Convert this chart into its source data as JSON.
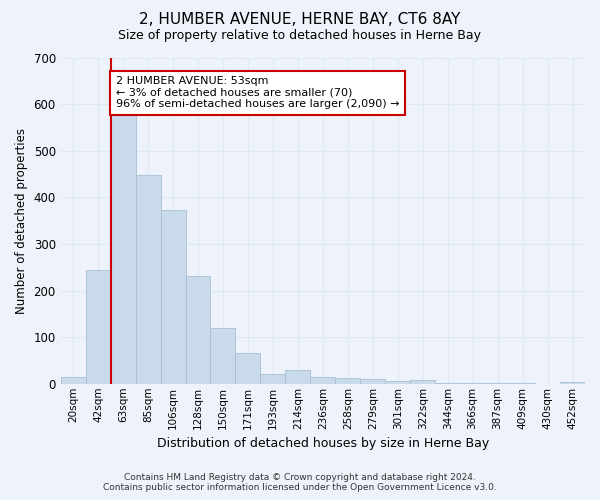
{
  "title": "2, HUMBER AVENUE, HERNE BAY, CT6 8AY",
  "subtitle": "Size of property relative to detached houses in Herne Bay",
  "xlabel": "Distribution of detached houses by size in Herne Bay",
  "ylabel": "Number of detached properties",
  "bar_color": "#c9daea",
  "bar_edge_color": "#a8c0d4",
  "vline_color": "#cc0000",
  "vline_x": 1.5,
  "annotation_text": "2 HUMBER AVENUE: 53sqm\n← 3% of detached houses are smaller (70)\n96% of semi-detached houses are larger (2,090) →",
  "annotation_box_color": "white",
  "annotation_box_edge": "#cc0000",
  "categories": [
    "20sqm",
    "42sqm",
    "63sqm",
    "85sqm",
    "106sqm",
    "128sqm",
    "150sqm",
    "171sqm",
    "193sqm",
    "214sqm",
    "236sqm",
    "258sqm",
    "279sqm",
    "301sqm",
    "322sqm",
    "344sqm",
    "366sqm",
    "387sqm",
    "409sqm",
    "430sqm",
    "452sqm"
  ],
  "values": [
    15,
    245,
    585,
    448,
    373,
    232,
    120,
    66,
    22,
    30,
    15,
    12,
    10,
    5,
    8,
    2,
    2,
    1,
    1,
    0,
    4
  ],
  "ylim": [
    0,
    700
  ],
  "yticks": [
    0,
    100,
    200,
    300,
    400,
    500,
    600,
    700
  ],
  "grid_color": "#dde8f5",
  "footer": "Contains HM Land Registry data © Crown copyright and database right 2024.\nContains public sector information licensed under the Open Government Licence v3.0.",
  "background_color": "#eef2fa"
}
